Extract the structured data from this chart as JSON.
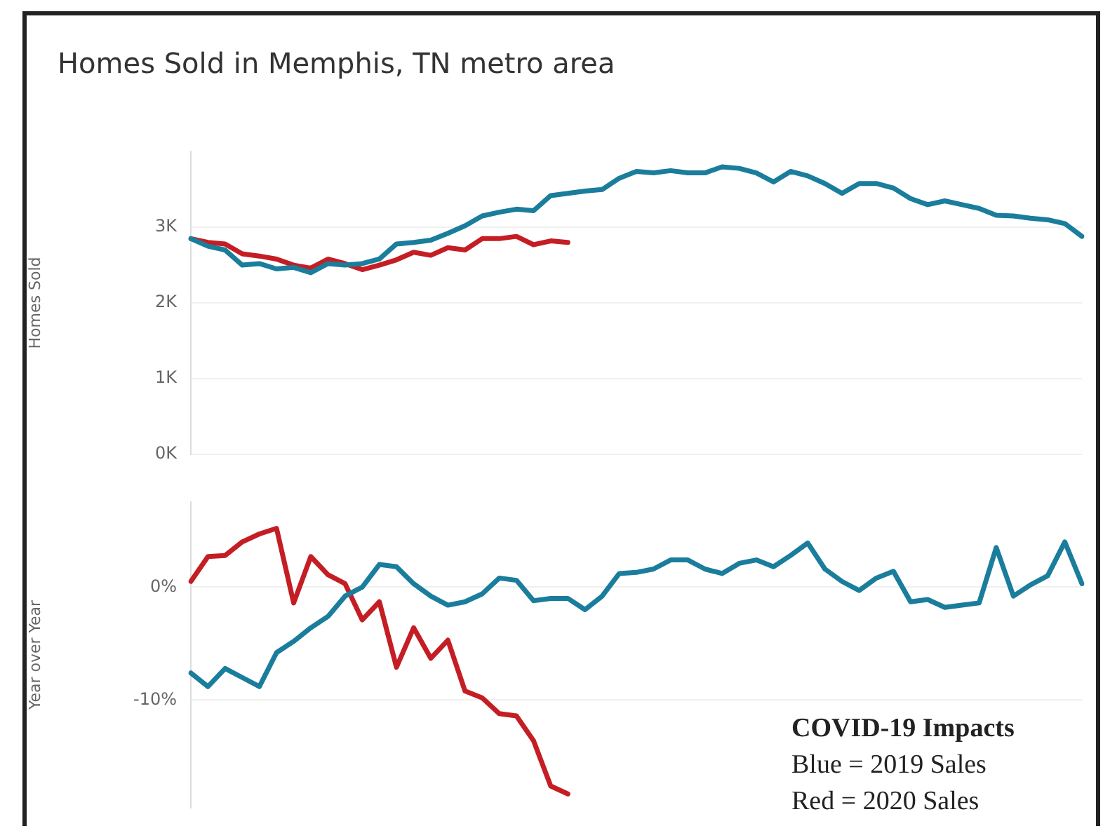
{
  "chart_data": [
    {
      "type": "line",
      "title": "Homes Sold in Memphis, TN metro area",
      "ylabel": "Homes Sold",
      "categories": [
        null,
        null,
        null,
        null,
        null,
        null,
        null,
        null,
        null,
        null,
        null,
        null,
        null,
        null,
        null,
        null,
        null,
        null,
        null,
        null,
        null,
        null,
        null,
        null,
        null,
        null,
        null,
        null,
        null,
        null,
        null,
        null,
        null,
        null,
        null,
        null,
        null,
        null,
        null,
        null,
        null,
        null,
        null,
        null,
        null,
        null,
        null,
        null,
        null,
        null,
        null,
        null,
        null
      ],
      "series": [
        {
          "color": "#1a7d9c",
          "values": [
            2.85,
            2.75,
            2.7,
            2.5,
            2.52,
            2.45,
            2.47,
            2.4,
            2.52,
            2.5,
            2.52,
            2.58,
            2.78,
            2.8,
            2.83,
            2.92,
            3.02,
            3.15,
            3.2,
            3.24,
            3.22,
            3.42,
            3.45,
            3.48,
            3.5,
            3.65,
            3.74,
            3.72,
            3.75,
            3.72,
            3.72,
            3.8,
            3.78,
            3.72,
            3.6,
            3.74,
            3.68,
            3.58,
            3.45,
            3.58,
            3.58,
            3.52,
            3.38,
            3.3,
            3.35,
            3.3,
            3.25,
            3.16,
            3.15,
            3.12,
            3.1,
            3.05,
            2.88
          ]
        },
        {
          "color": "#c41e24",
          "values": [
            2.85,
            2.8,
            2.78,
            2.65,
            2.62,
            2.58,
            2.5,
            2.46,
            2.58,
            2.52,
            2.44,
            2.5,
            2.57,
            2.67,
            2.63,
            2.73,
            2.7,
            2.85,
            2.85,
            2.88,
            2.77,
            2.82,
            2.8,
            null,
            null,
            null,
            null,
            null,
            null,
            null,
            null,
            null,
            null,
            null,
            null,
            null,
            null,
            null,
            null,
            null,
            null,
            null,
            null,
            null,
            null,
            null,
            null,
            null,
            null,
            null,
            null,
            null,
            null
          ]
        }
      ],
      "ylim": [
        0,
        4
      ],
      "yticks": [
        {
          "value": 0,
          "label": "0K"
        },
        {
          "value": 1,
          "label": "1K"
        },
        {
          "value": 2,
          "label": "2K"
        },
        {
          "value": 3,
          "label": "3K"
        }
      ],
      "grid": "y",
      "legend": false,
      "line_style": "solid",
      "marker": "none"
    },
    {
      "type": "line",
      "ylabel": "Year over Year",
      "categories": [
        null,
        null,
        null,
        null,
        null,
        null,
        null,
        null,
        null,
        null,
        null,
        null,
        null,
        null,
        null,
        null,
        null,
        null,
        null,
        null,
        null,
        null,
        null,
        null,
        null,
        null,
        null,
        null,
        null,
        null,
        null,
        null,
        null,
        null,
        null,
        null,
        null,
        null,
        null,
        null,
        null,
        null,
        null,
        null,
        null,
        null,
        null,
        null,
        null,
        null,
        null,
        null,
        null
      ],
      "series": [
        {
          "color": "#1a7d9c",
          "values": [
            -7.6,
            -8.8,
            -7.2,
            -8.0,
            -8.8,
            -5.8,
            -4.8,
            -3.6,
            -2.6,
            -0.8,
            0.0,
            2.0,
            1.8,
            0.3,
            -0.8,
            -1.6,
            -1.3,
            -0.6,
            0.8,
            0.6,
            -1.2,
            -1.0,
            -1.0,
            -2.0,
            -0.8,
            1.2,
            1.3,
            1.6,
            2.4,
            2.4,
            1.6,
            1.2,
            2.1,
            2.4,
            1.8,
            2.8,
            3.9,
            1.6,
            0.5,
            -0.3,
            0.8,
            1.4,
            -1.3,
            -1.1,
            -1.8,
            -1.6,
            -1.4,
            3.5,
            -0.8,
            0.2,
            1.0,
            4.0,
            0.3
          ]
        },
        {
          "color": "#c41e24",
          "values": [
            0.5,
            2.7,
            2.8,
            4.0,
            4.7,
            5.2,
            -1.4,
            2.7,
            1.1,
            0.3,
            -2.9,
            -1.3,
            -7.1,
            -3.6,
            -6.3,
            -4.7,
            -9.2,
            -9.8,
            -11.2,
            -11.4,
            -13.6,
            -17.6,
            -18.3,
            null,
            null,
            null,
            null,
            null,
            null,
            null,
            null,
            null,
            null,
            null,
            null,
            null,
            null,
            null,
            null,
            null,
            null,
            null,
            null,
            null,
            null,
            null,
            null,
            null,
            null,
            null,
            null,
            null,
            null
          ]
        }
      ],
      "ylim": [
        -19.5,
        7.5
      ],
      "yticks": [
        {
          "value": -10,
          "label": "-10%"
        },
        {
          "value": 0,
          "label": "0%"
        }
      ],
      "grid": "y",
      "legend": false,
      "line_style": "solid",
      "marker": "none",
      "annotations": [
        "COVID-19 Impacts",
        "Blue = 2019 Sales",
        "Red = 2020 Sales"
      ]
    }
  ]
}
